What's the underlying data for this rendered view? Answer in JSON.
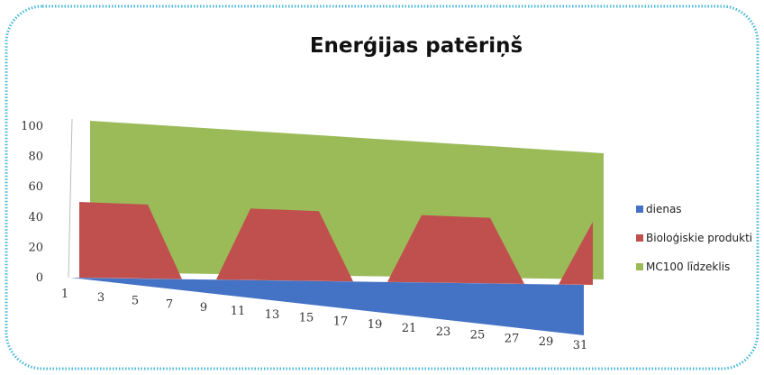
{
  "chart_data": {
    "type": "area",
    "title": "Enerģijas patēriņš",
    "x": [
      "1",
      "3",
      "5",
      "7",
      "9",
      "11",
      "13",
      "15",
      "17",
      "19",
      "21",
      "23",
      "25",
      "27",
      "29",
      "31"
    ],
    "ylim": [
      0,
      100
    ],
    "yticks": [
      "0",
      "20",
      "40",
      "60",
      "80",
      "100"
    ],
    "legend_position": "right",
    "series": [
      {
        "name": "dienas",
        "color": "#4472c4",
        "values": [
          1,
          3,
          5,
          7,
          9,
          11,
          13,
          15,
          17,
          19,
          21,
          23,
          25,
          27,
          29,
          31
        ]
      },
      {
        "name": "Bioloģiskie produkti",
        "color": "#c0504d",
        "values": [
          50,
          50,
          50,
          0,
          0,
          50,
          50,
          50,
          0,
          0,
          50,
          50,
          50,
          0,
          0,
          50
        ]
      },
      {
        "name": "MC100 līdzeklis",
        "color": "#9bbb59",
        "values": [
          100,
          100,
          100,
          100,
          100,
          100,
          100,
          100,
          100,
          100,
          100,
          100,
          100,
          100,
          100,
          100
        ]
      }
    ],
    "grid": false
  }
}
